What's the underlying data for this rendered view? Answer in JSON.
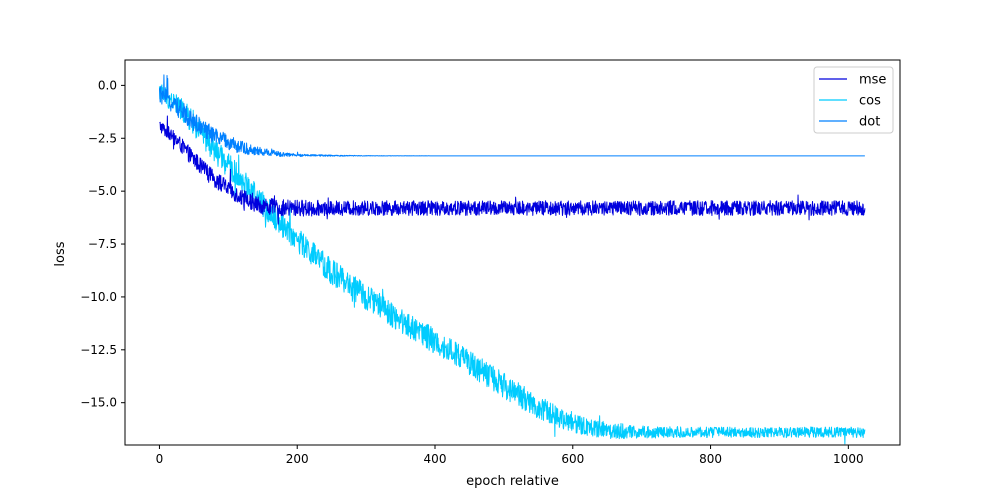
{
  "chart_data": {
    "type": "line",
    "xlabel": "epoch relative",
    "ylabel": "loss",
    "xlim": [
      -50,
      1075
    ],
    "ylim": [
      -17.0,
      1.2
    ],
    "xticks": [
      0,
      200,
      400,
      600,
      800,
      1000
    ],
    "xtick_labels": [
      "0",
      "200",
      "400",
      "600",
      "800",
      "1000"
    ],
    "yticks": [
      0.0,
      -2.5,
      -5.0,
      -7.5,
      -10.0,
      -12.5,
      -15.0
    ],
    "ytick_labels": [
      "0.0",
      "−2.5",
      "−5.0",
      "−7.5",
      "−10.0",
      "−12.5",
      "−15.0"
    ],
    "legend_position": "top-right",
    "grid": false,
    "series": [
      {
        "name": "mse",
        "color": "#0000dd",
        "x": [
          0,
          25,
          50,
          75,
          100,
          125,
          150,
          175,
          200,
          250,
          300,
          400,
          500,
          600,
          700,
          800,
          900,
          1024
        ],
        "y": [
          -1.9,
          -2.6,
          -3.5,
          -4.3,
          -4.9,
          -5.4,
          -5.7,
          -5.8,
          -5.8,
          -5.8,
          -5.8,
          -5.8,
          -5.8,
          -5.8,
          -5.8,
          -5.8,
          -5.8,
          -5.8
        ],
        "noise": [
          0.3,
          0.35,
          0.4,
          0.4,
          0.4,
          0.4,
          0.4,
          0.4,
          0.4,
          0.35,
          0.35,
          0.35,
          0.35,
          0.35,
          0.35,
          0.35,
          0.35,
          0.35
        ]
      },
      {
        "name": "cos",
        "color": "#00ccff",
        "x": [
          0,
          25,
          50,
          75,
          100,
          150,
          200,
          250,
          300,
          350,
          400,
          450,
          500,
          550,
          600,
          650,
          700,
          800,
          900,
          1024
        ],
        "y": [
          -0.3,
          -0.9,
          -1.8,
          -2.9,
          -3.8,
          -5.6,
          -7.3,
          -8.8,
          -10.0,
          -11.1,
          -12.1,
          -13.1,
          -14.2,
          -15.2,
          -16.0,
          -16.3,
          -16.4,
          -16.4,
          -16.4,
          -16.4
        ],
        "noise": [
          0.5,
          0.5,
          0.6,
          0.6,
          0.6,
          0.6,
          0.6,
          0.6,
          0.6,
          0.6,
          0.6,
          0.6,
          0.6,
          0.55,
          0.45,
          0.4,
          0.3,
          0.25,
          0.25,
          0.25
        ]
      },
      {
        "name": "dot",
        "color": "#0080ff",
        "x": [
          0,
          25,
          50,
          75,
          100,
          125,
          150,
          175,
          200,
          250,
          300,
          400,
          600,
          800,
          1024
        ],
        "y": [
          -0.4,
          -1.0,
          -1.7,
          -2.3,
          -2.7,
          -3.0,
          -3.15,
          -3.25,
          -3.3,
          -3.32,
          -3.33,
          -3.33,
          -3.33,
          -3.33,
          -3.33
        ],
        "noise": [
          0.45,
          0.45,
          0.45,
          0.4,
          0.35,
          0.3,
          0.2,
          0.12,
          0.06,
          0.03,
          0.01,
          0.0,
          0.0,
          0.0,
          0.0
        ]
      }
    ]
  }
}
